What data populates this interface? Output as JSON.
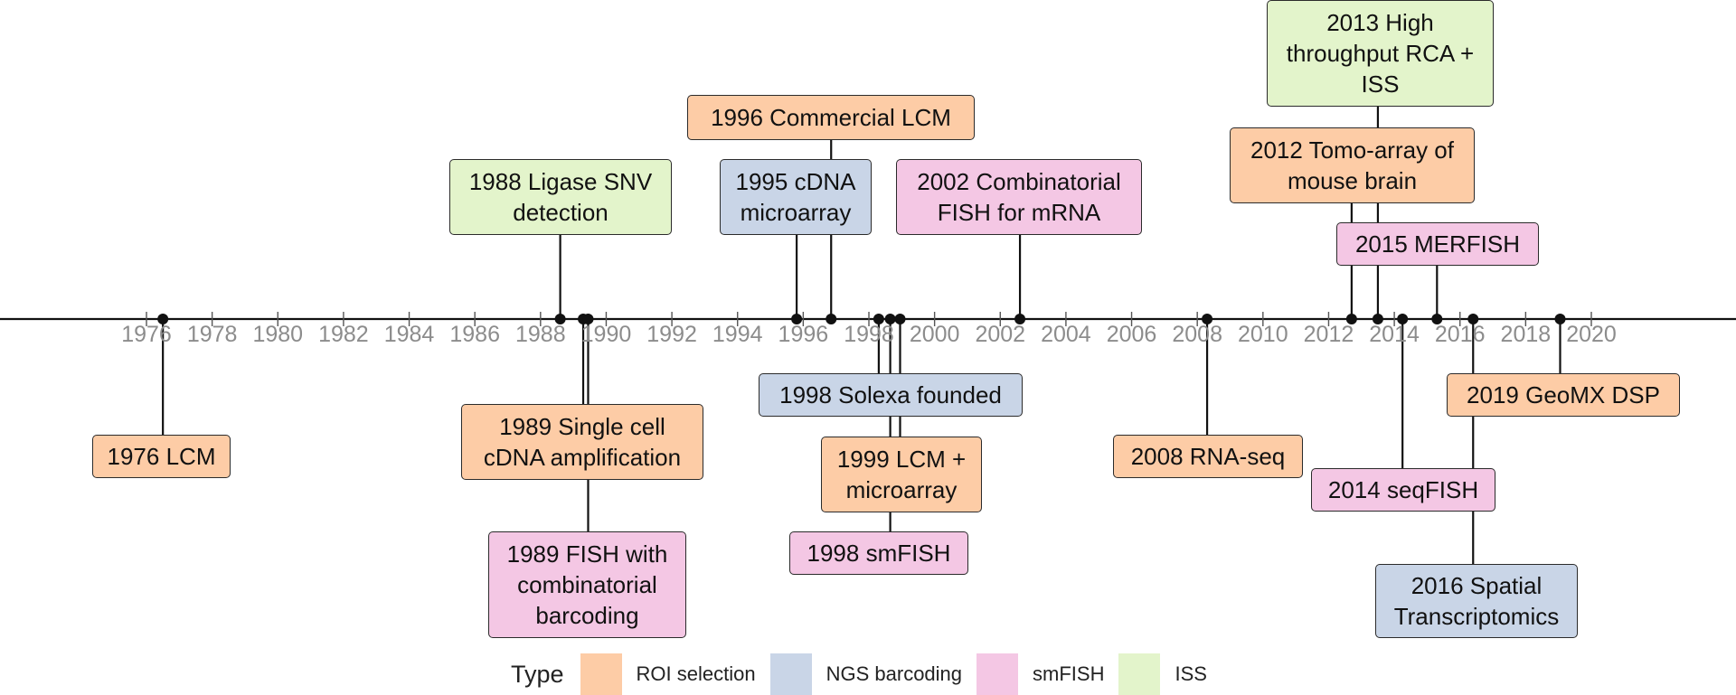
{
  "axis": {
    "year_min": 1976,
    "year_max": 2020,
    "tick_step": 2,
    "tick_labels": [
      "1976",
      "1978",
      "1980",
      "1982",
      "1984",
      "1986",
      "1988",
      "1990",
      "1992",
      "1994",
      "1996",
      "1998",
      "2000",
      "2002",
      "2004",
      "2006",
      "2008",
      "2010",
      "2012",
      "2014",
      "2016",
      "2018",
      "2020"
    ]
  },
  "categories": [
    {
      "key": "roi",
      "label": "ROI selection",
      "color": "#fdcca6"
    },
    {
      "key": "ngs",
      "label": "NGS barcoding",
      "color": "#c9d5e7"
    },
    {
      "key": "smfish",
      "label": "smFISH",
      "color": "#f4c7e4"
    },
    {
      "key": "iss",
      "label": "ISS",
      "color": "#e3f4cb"
    }
  ],
  "legend": {
    "title": "Type"
  },
  "events": [
    {
      "year": 1976.5,
      "label": "1976 LCM",
      "category": "roi"
    },
    {
      "year": 1988.6,
      "label": "1988 Ligase SNV detection",
      "category": "iss"
    },
    {
      "year": 1989.3,
      "label": "1989 Single cell cDNA amplification",
      "category": "roi"
    },
    {
      "year": 1989.45,
      "label": "1989 FISH with combinatorial barcoding",
      "category": "smfish"
    },
    {
      "year": 1995.8,
      "label": "1995 cDNA microarray",
      "category": "ngs"
    },
    {
      "year": 1996.85,
      "label": "1996 Commercial LCM",
      "category": "roi"
    },
    {
      "year": 1998.3,
      "label": "1998 Solexa founded",
      "category": "ngs"
    },
    {
      "year": 1998.65,
      "label": "1998 smFISH",
      "category": "smfish"
    },
    {
      "year": 1998.95,
      "label": "1999 LCM + microarray",
      "category": "roi"
    },
    {
      "year": 2002.6,
      "label": "2002 Combinatorial FISH for mRNA",
      "category": "smfish"
    },
    {
      "year": 2008.3,
      "label": "2008 RNA-seq",
      "category": "roi"
    },
    {
      "year": 2012.7,
      "label": "2012 Tomo-array of mouse brain",
      "category": "roi"
    },
    {
      "year": 2013.5,
      "label": "2013 High throughput RCA + ISS",
      "category": "iss"
    },
    {
      "year": 2014.25,
      "label": "2014 seqFISH",
      "category": "smfish"
    },
    {
      "year": 2015.3,
      "label": "2015 MERFISH",
      "category": "smfish"
    },
    {
      "year": 2016.4,
      "label": "2016 Spatial Transcriptomics",
      "category": "ngs"
    },
    {
      "year": 2019.05,
      "label": "2019 GeoMX DSP",
      "category": "roi"
    }
  ]
}
